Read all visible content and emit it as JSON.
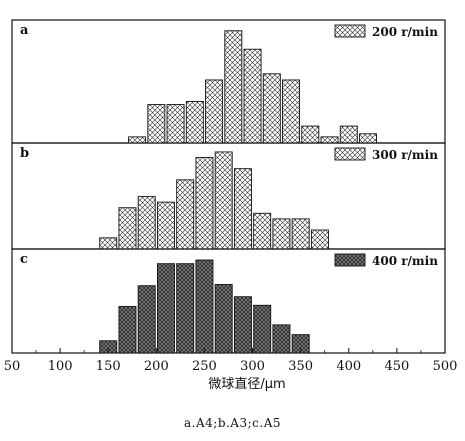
{
  "caption": "a.A4;b.A3;c.A5",
  "chart_data": [
    {
      "type": "bar",
      "panel_label": "a",
      "legend": "200 r/min",
      "legend_position": "top-right",
      "fill": "crosshatch",
      "x": [
        180,
        200,
        220,
        240,
        260,
        280,
        300,
        320,
        340,
        360,
        380,
        400,
        420
      ],
      "values": [
        4,
        25,
        25,
        27,
        41,
        73,
        61,
        45,
        41,
        11,
        4,
        11,
        6
      ],
      "xlim": [
        50,
        500
      ],
      "ylim": [
        0,
        80
      ]
    },
    {
      "type": "bar",
      "panel_label": "b",
      "legend": "300 r/min",
      "legend_position": "top-right",
      "fill": "crosshatch",
      "x": [
        150,
        170,
        190,
        210,
        230,
        250,
        270,
        290,
        310,
        330,
        350,
        370
      ],
      "values": [
        10,
        37,
        47,
        42,
        62,
        82,
        87,
        72,
        32,
        27,
        27,
        17
      ],
      "xlim": [
        50,
        500
      ],
      "ylim": [
        0,
        95
      ]
    },
    {
      "type": "bar",
      "panel_label": "c",
      "legend": "400 r/min",
      "legend_position": "top-right",
      "fill": "dark-crosshatch",
      "x": [
        150,
        170,
        190,
        210,
        230,
        250,
        270,
        290,
        310,
        330,
        350
      ],
      "values": [
        10,
        38,
        55,
        73,
        73,
        76,
        56,
        46,
        39,
        23,
        15
      ],
      "xlim": [
        50,
        500
      ],
      "ylim": [
        0,
        85
      ]
    }
  ],
  "x_axis": {
    "label": "微球直径/μm",
    "ticks": [
      50,
      100,
      150,
      200,
      250,
      300,
      350,
      400,
      450,
      500
    ]
  }
}
